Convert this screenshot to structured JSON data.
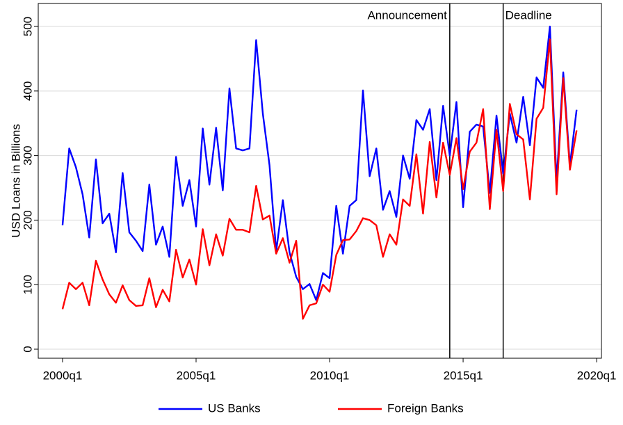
{
  "chart_data": {
    "type": "line",
    "ylabel": "USD Loans in Billions",
    "x": [
      2000,
      2000.25,
      2000.5,
      2000.75,
      2001,
      2001.25,
      2001.5,
      2001.75,
      2002,
      2002.25,
      2002.5,
      2002.75,
      2003,
      2003.25,
      2003.5,
      2003.75,
      2004,
      2004.25,
      2004.5,
      2004.75,
      2005,
      2005.25,
      2005.5,
      2005.75,
      2006,
      2006.25,
      2006.5,
      2006.75,
      2007,
      2007.25,
      2007.5,
      2007.75,
      2008,
      2008.25,
      2008.5,
      2008.75,
      2009,
      2009.25,
      2009.5,
      2009.75,
      2010,
      2010.25,
      2010.5,
      2010.75,
      2011,
      2011.25,
      2011.5,
      2011.75,
      2012,
      2012.25,
      2012.5,
      2012.75,
      2013,
      2013.25,
      2013.5,
      2013.75,
      2014,
      2014.25,
      2014.5,
      2014.75,
      2015,
      2015.25,
      2015.5,
      2015.75,
      2016,
      2016.25,
      2016.5,
      2016.75,
      2017,
      2017.25,
      2017.5,
      2017.75,
      2018,
      2018.25,
      2018.5,
      2018.75,
      2019,
      2019.25
    ],
    "series": [
      {
        "name": "US Banks",
        "color": "#0000ff",
        "values": [
          192,
          311,
          282,
          240,
          173,
          294,
          195,
          210,
          150,
          273,
          181,
          168,
          152,
          255,
          162,
          190,
          143,
          298,
          222,
          262,
          190,
          342,
          255,
          343,
          246,
          404,
          311,
          308,
          311,
          479,
          365,
          285,
          152,
          231,
          150,
          112,
          93,
          101,
          76,
          118,
          110,
          222,
          148,
          222,
          231,
          401,
          268,
          311,
          216,
          245,
          205,
          300,
          264,
          355,
          340,
          372,
          262,
          377,
          300,
          383,
          220,
          337,
          348,
          345,
          242,
          362,
          272,
          365,
          320,
          391,
          316,
          421,
          405,
          500,
          260,
          429,
          285,
          371
        ]
      },
      {
        "name": "Foreign Banks",
        "color": "#ff0000",
        "values": [
          62,
          103,
          93,
          103,
          68,
          137,
          108,
          85,
          72,
          99,
          76,
          67,
          68,
          110,
          65,
          92,
          74,
          154,
          111,
          139,
          100,
          186,
          130,
          178,
          145,
          202,
          185,
          185,
          181,
          253,
          201,
          207,
          148,
          172,
          134,
          168,
          47,
          68,
          71,
          100,
          89,
          146,
          169,
          170,
          183,
          203,
          200,
          192,
          143,
          178,
          162,
          232,
          222,
          302,
          210,
          321,
          235,
          320,
          270,
          327,
          248,
          306,
          320,
          372,
          217,
          340,
          245,
          380,
          333,
          325,
          232,
          357,
          374,
          480,
          240,
          420,
          278,
          339
        ]
      }
    ],
    "annotations": [
      {
        "x": 2014.5,
        "label": "Announcement"
      },
      {
        "x": 2016.5,
        "label": "Deadline"
      }
    ],
    "xlim": [
      1999.09,
      2020.18
    ],
    "xticks": [
      {
        "value": 2000,
        "label": "2000q1"
      },
      {
        "value": 2005,
        "label": "2005q1"
      },
      {
        "value": 2010,
        "label": "2010q1"
      },
      {
        "value": 2015,
        "label": "2015q1"
      },
      {
        "value": 2020,
        "label": "2020q1"
      }
    ],
    "ylim": [
      -14,
      535.6
    ],
    "yticks": [
      0,
      100,
      200,
      300,
      400,
      500
    ],
    "grid": true,
    "legend": "bottom"
  }
}
